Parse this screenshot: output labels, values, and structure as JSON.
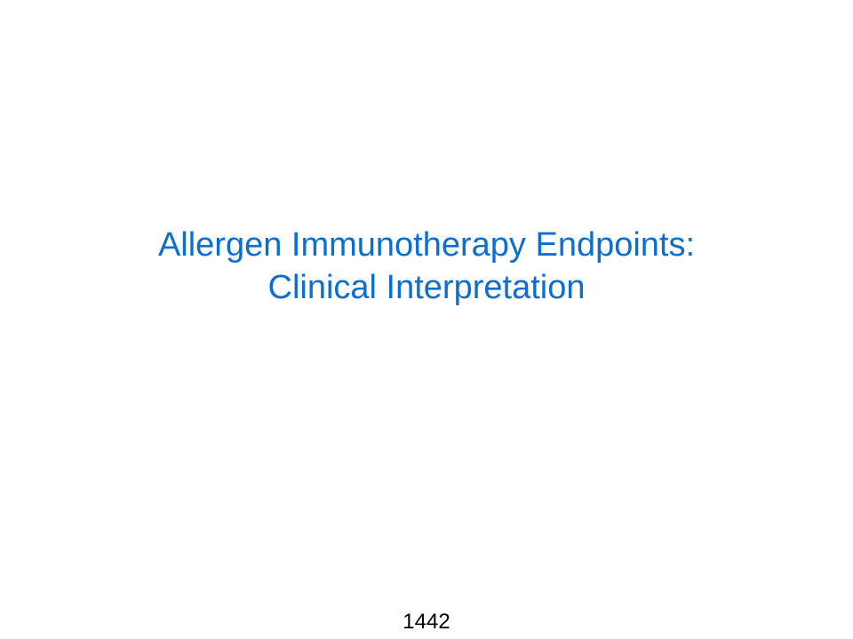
{
  "slide": {
    "title_lines": [
      "Allergen Immunotherapy Endpoints:",
      "Clinical Interpretation"
    ],
    "page_number": "1442"
  },
  "colors": {
    "title": "#0a6fd1",
    "page_number": "#000000",
    "background": "#ffffff"
  }
}
